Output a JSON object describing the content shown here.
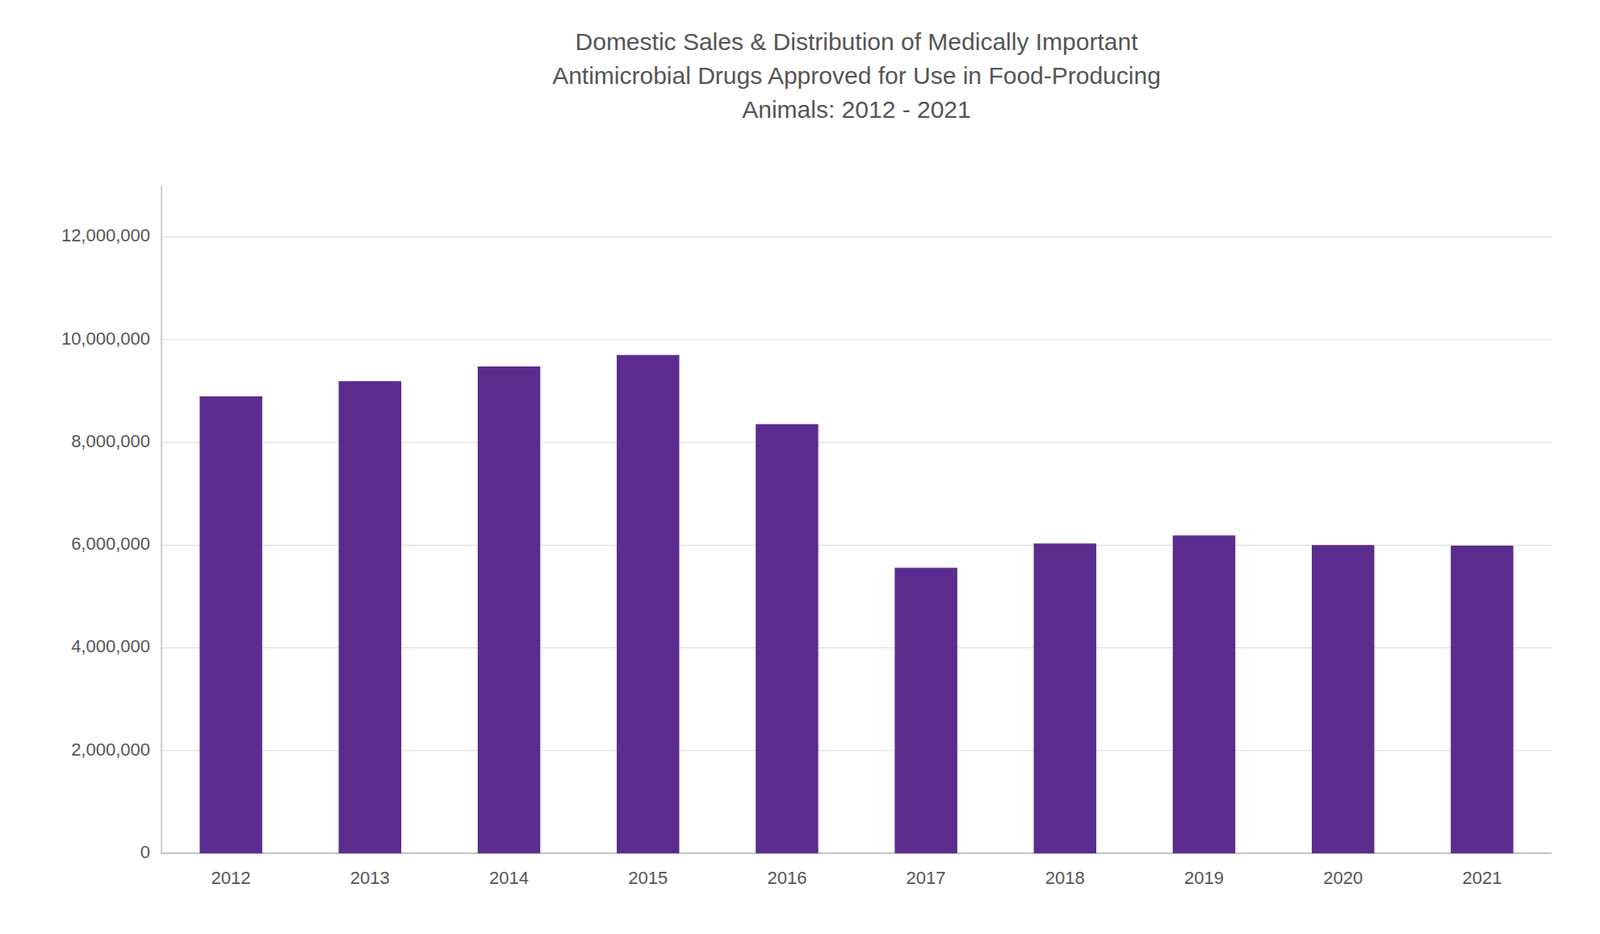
{
  "chart_data": {
    "type": "bar",
    "title": "Domestic Sales & Distribution of Medically Important\nAntimicrobial Drugs Approved for Use in Food-Producing\nAnimals: 2012 - 2021",
    "categories": [
      "2012",
      "2013",
      "2014",
      "2015",
      "2016",
      "2017",
      "2018",
      "2019",
      "2020",
      "2021"
    ],
    "values": [
      8897420,
      9193293,
      9479339,
      9702943,
      8356340,
      5559212,
      6032298,
      6189260,
      6002056,
      5989721
    ],
    "color": "#5B2C8D",
    "ylim": [
      0,
      13000000
    ],
    "yticks": [
      0,
      {
        "value": 2000000,
        "label": "2,000,000"
      },
      {
        "value": 4000000,
        "label": "4,000,000"
      },
      {
        "value": 6000000,
        "label": "6,000,000"
      },
      {
        "value": 8000000,
        "label": "8,000,000"
      },
      {
        "value": 10000000,
        "label": "10,000,000"
      },
      {
        "value": 12000000,
        "label": "12,000,000"
      }
    ],
    "grid": true
  }
}
